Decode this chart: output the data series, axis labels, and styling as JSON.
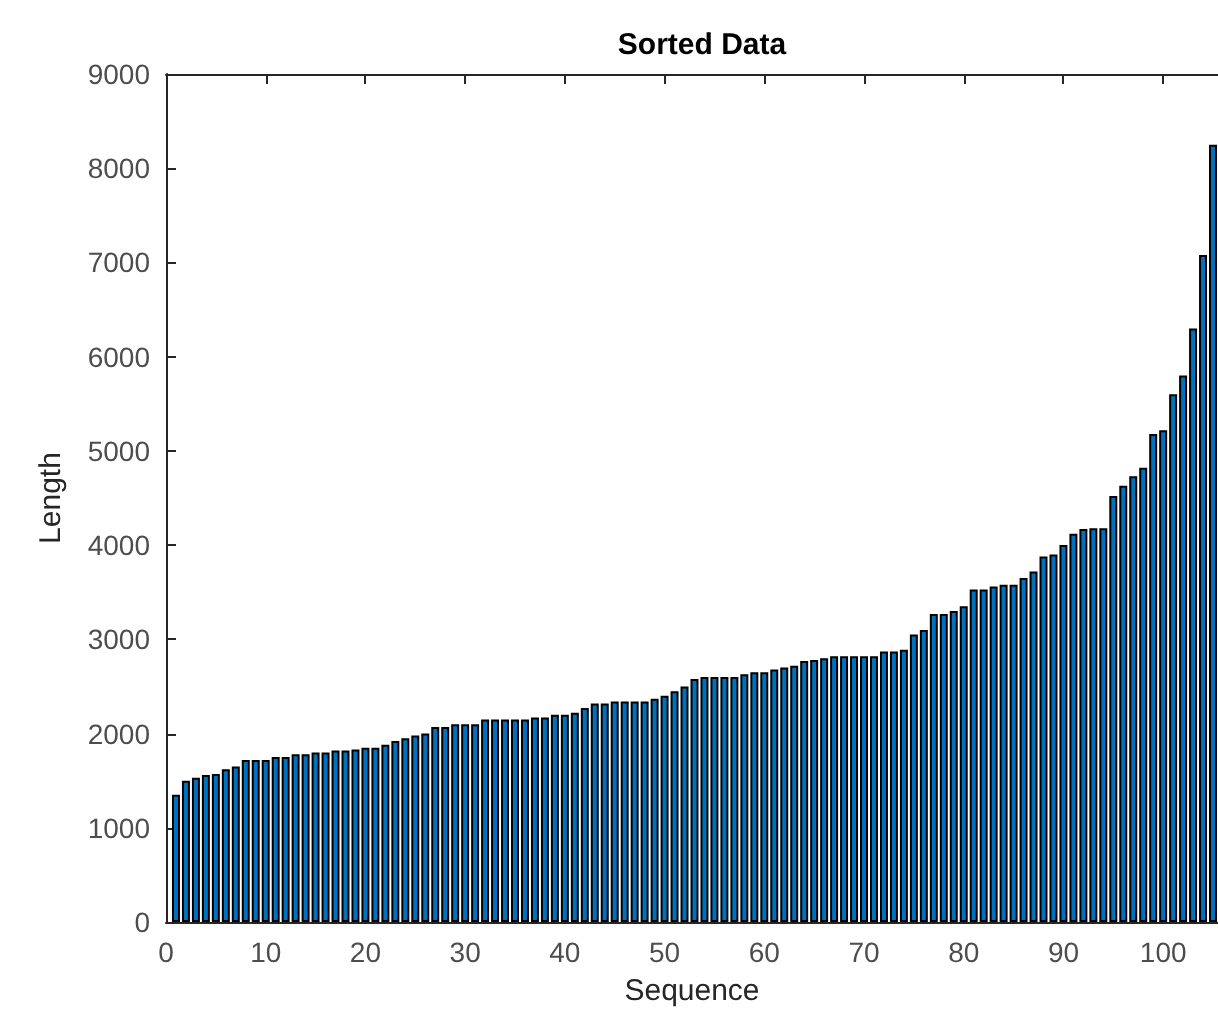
{
  "chart_data": {
    "type": "bar",
    "title": "Sorted Data",
    "xlabel": "Sequence",
    "ylabel": "Length",
    "x": [
      1,
      2,
      3,
      4,
      5,
      6,
      7,
      8,
      9,
      10,
      11,
      12,
      13,
      14,
      15,
      16,
      17,
      18,
      19,
      20,
      21,
      22,
      23,
      24,
      25,
      26,
      27,
      28,
      29,
      30,
      31,
      32,
      33,
      34,
      35,
      36,
      37,
      38,
      39,
      40,
      41,
      42,
      43,
      44,
      45,
      46,
      47,
      48,
      49,
      50,
      51,
      52,
      53,
      54,
      55,
      56,
      57,
      58,
      59,
      60,
      61,
      62,
      63,
      64,
      65,
      66,
      67,
      68,
      69,
      70,
      71,
      72,
      73,
      74,
      75,
      76,
      77,
      78,
      79,
      80,
      81,
      82,
      83,
      84,
      85,
      86,
      87,
      88,
      89,
      90,
      91,
      92,
      93,
      94,
      95,
      96,
      97,
      98,
      99,
      100,
      101,
      102,
      103,
      104,
      105
    ],
    "values": [
      1350,
      1500,
      1530,
      1560,
      1570,
      1620,
      1650,
      1720,
      1720,
      1720,
      1750,
      1750,
      1780,
      1780,
      1800,
      1800,
      1820,
      1820,
      1830,
      1850,
      1850,
      1880,
      1920,
      1950,
      1980,
      2000,
      2070,
      2070,
      2100,
      2100,
      2100,
      2150,
      2150,
      2150,
      2150,
      2150,
      2170,
      2170,
      2200,
      2200,
      2220,
      2270,
      2320,
      2320,
      2340,
      2340,
      2340,
      2340,
      2370,
      2400,
      2450,
      2500,
      2580,
      2600,
      2600,
      2600,
      2600,
      2630,
      2650,
      2650,
      2680,
      2700,
      2720,
      2770,
      2780,
      2800,
      2820,
      2820,
      2820,
      2820,
      2820,
      2870,
      2870,
      2890,
      3050,
      3100,
      3270,
      3270,
      3300,
      3350,
      3530,
      3530,
      3560,
      3580,
      3580,
      3650,
      3720,
      3880,
      3900,
      4000,
      4120,
      4170,
      4180,
      4180,
      4520,
      4630,
      4730,
      4820,
      5180,
      5220,
      5600,
      5800,
      6300,
      7080,
      8250
    ],
    "color": "#0072bd",
    "xlim": [
      0,
      105.5
    ],
    "xticks": [
      0,
      10,
      20,
      30,
      40,
      50,
      60,
      70,
      80,
      90,
      100
    ],
    "ylim": [
      0,
      9000
    ],
    "yticks": [
      0,
      1000,
      2000,
      3000,
      4000,
      5000,
      6000,
      7000,
      8000,
      9000
    ]
  }
}
